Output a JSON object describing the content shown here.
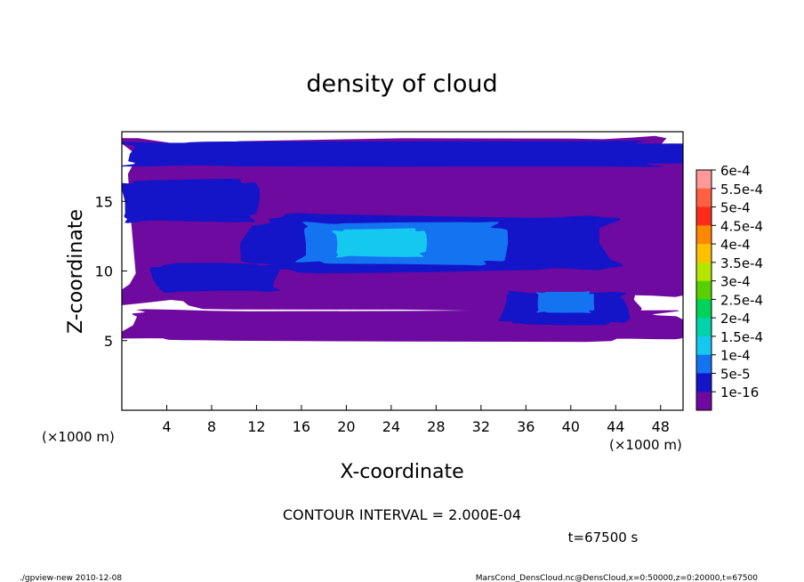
{
  "chart_data": {
    "type": "heatmap",
    "title": "density of cloud",
    "xlabel": "X-coordinate",
    "ylabel": "Z-coordinate",
    "x_unit": "(×1000 m)",
    "y_unit": "(×1000 m)",
    "xlim": [
      0,
      50
    ],
    "ylim": [
      0,
      20
    ],
    "x_ticks": [
      4,
      8,
      12,
      16,
      20,
      24,
      28,
      32,
      36,
      40,
      44,
      48
    ],
    "y_ticks": [
      5,
      10,
      15
    ],
    "contour_interval_label": "CONTOUR INTERVAL = 2.000E-04",
    "time_label": "t=67500 s",
    "footer_left": "./gpview-new  2010-12-08",
    "footer_right": "MarsCond_DensCloud.nc@DensCloud,x=0:50000,z=0:20000,t=67500",
    "colorbar": {
      "levels": [
        {
          "label": "6e-4",
          "color": "#ff9999"
        },
        {
          "label": "5.5e-4",
          "color": "#ff6040"
        },
        {
          "label": "5e-4",
          "color": "#ff2a1a"
        },
        {
          "label": "4.5e-4",
          "color": "#ff8800"
        },
        {
          "label": "4e-4",
          "color": "#ffc000"
        },
        {
          "label": "3.5e-4",
          "color": "#b6e600"
        },
        {
          "label": "3e-4",
          "color": "#58d000"
        },
        {
          "label": "2.5e-4",
          "color": "#00d25a"
        },
        {
          "label": "2e-4",
          "color": "#00d2aa"
        },
        {
          "label": "1.5e-4",
          "color": "#14c8f0"
        },
        {
          "label": "1e-4",
          "color": "#1473f0"
        },
        {
          "label": "5e-5",
          "color": "#1414c8"
        },
        {
          "label": "1e-16",
          "color": "#6e0aa0"
        }
      ]
    },
    "regions": [
      {
        "level": "1e-16",
        "x": [
          0,
          50
        ],
        "z": [
          5.0,
          7.2
        ]
      },
      {
        "level": "1e-16",
        "x": [
          0,
          50
        ],
        "z": [
          7.2,
          19.5
        ]
      },
      {
        "level": "5e-5",
        "x": [
          0,
          50
        ],
        "z": [
          17.5,
          19.3
        ]
      },
      {
        "level": "5e-5",
        "x": [
          0,
          12
        ],
        "z": [
          13.5,
          16.5
        ]
      },
      {
        "level": "5e-5",
        "x": [
          3,
          14
        ],
        "z": [
          8.5,
          10.5
        ]
      },
      {
        "level": "5e-5",
        "x": [
          12,
          44
        ],
        "z": [
          10,
          14
        ]
      },
      {
        "level": "5e-5",
        "x": [
          34,
          45
        ],
        "z": [
          6.2,
          8.5
        ]
      },
      {
        "level": "1e-4",
        "x": [
          16,
          34
        ],
        "z": [
          10.5,
          13.5
        ]
      },
      {
        "level": "1e-4",
        "x": [
          37,
          42
        ],
        "z": [
          7,
          8.5
        ]
      },
      {
        "level": "1.5e-4",
        "x": [
          19,
          27
        ],
        "z": [
          11,
          13
        ]
      }
    ]
  }
}
